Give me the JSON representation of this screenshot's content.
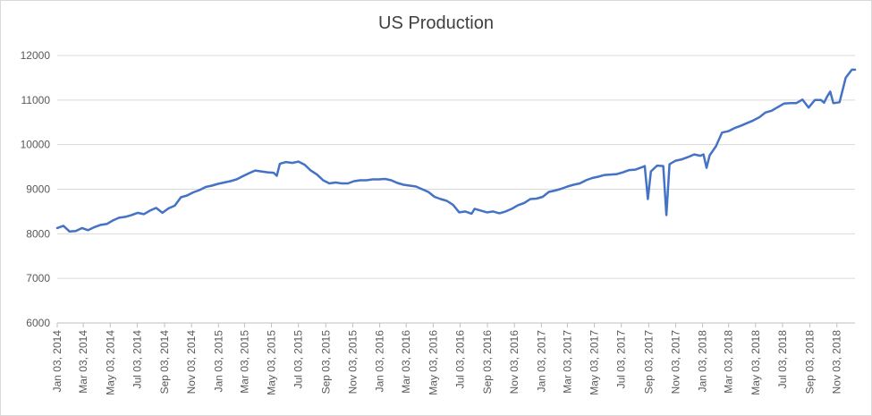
{
  "chart_data": {
    "type": "line",
    "title": "US Production",
    "xlabel": "",
    "ylabel": "",
    "ylim": [
      6000,
      12000
    ],
    "yticks": [
      6000,
      7000,
      8000,
      9000,
      10000,
      11000,
      12000
    ],
    "xticks": [
      "Jan 03, 2014",
      "Mar 03, 2014",
      "May 03, 2014",
      "Jul 03, 2014",
      "Sep 03, 2014",
      "Nov 03, 2014",
      "Jan 03, 2015",
      "Mar 03, 2015",
      "May 03, 2015",
      "Jul 03, 2015",
      "Sep 03, 2015",
      "Nov 03, 2015",
      "Jan 03, 2016",
      "Mar 03, 2016",
      "May 03, 2016",
      "Jul 03, 2016",
      "Sep 03, 2016",
      "Nov 03, 2016",
      "Jan 03, 2017",
      "Mar 03, 2017",
      "May 03, 2017",
      "Jul 03, 2017",
      "Sep 03, 2017",
      "Nov 03, 2017",
      "Jan 03, 2018",
      "Mar 03, 2018",
      "May 03, 2018",
      "Jul 03, 2018",
      "Sep 03, 2018",
      "Nov 03, 2018"
    ],
    "grid": true,
    "legend": "none",
    "series_color": "#4472c4",
    "series": [
      {
        "x": [
          "2014-01-03",
          "2014-01-17",
          "2014-01-31",
          "2014-02-14",
          "2014-02-28",
          "2014-03-14",
          "2014-03-28",
          "2014-04-11",
          "2014-04-25",
          "2014-05-09",
          "2014-05-23",
          "2014-06-06",
          "2014-06-20",
          "2014-07-04",
          "2014-07-18",
          "2014-08-01",
          "2014-08-15",
          "2014-08-29",
          "2014-09-12",
          "2014-09-26",
          "2014-10-10",
          "2014-10-24",
          "2014-11-07",
          "2014-11-21",
          "2014-12-05",
          "2014-12-19",
          "2015-01-02",
          "2015-01-16",
          "2015-01-30",
          "2015-02-13",
          "2015-02-27",
          "2015-03-13",
          "2015-03-27",
          "2015-04-10",
          "2015-04-24",
          "2015-05-08",
          "2015-05-15",
          "2015-05-22",
          "2015-06-05",
          "2015-06-19",
          "2015-07-03",
          "2015-07-17",
          "2015-07-31",
          "2015-08-14",
          "2015-08-28",
          "2015-09-11",
          "2015-09-25",
          "2015-10-09",
          "2015-10-23",
          "2015-11-06",
          "2015-11-20",
          "2015-12-04",
          "2015-12-18",
          "2016-01-01",
          "2016-01-15",
          "2016-01-29",
          "2016-02-12",
          "2016-02-26",
          "2016-03-11",
          "2016-03-25",
          "2016-04-08",
          "2016-04-22",
          "2016-05-06",
          "2016-05-20",
          "2016-06-03",
          "2016-06-17",
          "2016-07-01",
          "2016-07-15",
          "2016-07-29",
          "2016-08-05",
          "2016-08-19",
          "2016-09-02",
          "2016-09-16",
          "2016-09-30",
          "2016-10-14",
          "2016-10-28",
          "2016-11-11",
          "2016-11-25",
          "2016-12-09",
          "2016-12-23",
          "2017-01-06",
          "2017-01-20",
          "2017-02-03",
          "2017-02-17",
          "2017-03-03",
          "2017-03-17",
          "2017-03-31",
          "2017-04-14",
          "2017-04-28",
          "2017-05-12",
          "2017-05-26",
          "2017-06-09",
          "2017-06-23",
          "2017-07-07",
          "2017-07-21",
          "2017-08-04",
          "2017-08-18",
          "2017-08-25",
          "2017-09-01",
          "2017-09-08",
          "2017-09-22",
          "2017-10-06",
          "2017-10-13",
          "2017-10-20",
          "2017-10-27",
          "2017-11-03",
          "2017-11-17",
          "2017-12-01",
          "2017-12-15",
          "2017-12-29",
          "2018-01-05",
          "2018-01-12",
          "2018-01-19",
          "2018-02-02",
          "2018-02-16",
          "2018-03-02",
          "2018-03-16",
          "2018-03-30",
          "2018-04-13",
          "2018-04-27",
          "2018-05-11",
          "2018-05-25",
          "2018-06-08",
          "2018-06-22",
          "2018-07-06",
          "2018-07-20",
          "2018-08-03",
          "2018-08-17",
          "2018-08-31",
          "2018-09-14",
          "2018-09-28",
          "2018-10-05",
          "2018-10-12",
          "2018-10-19",
          "2018-10-26",
          "2018-11-09",
          "2018-11-23",
          "2018-12-07",
          "2018-12-14"
        ],
        "values": [
          8130,
          8180,
          8050,
          8060,
          8130,
          8080,
          8150,
          8200,
          8220,
          8300,
          8360,
          8380,
          8420,
          8470,
          8440,
          8520,
          8580,
          8470,
          8570,
          8630,
          8820,
          8860,
          8930,
          8980,
          9050,
          9080,
          9120,
          9150,
          9180,
          9220,
          9290,
          9360,
          9420,
          9400,
          9380,
          9370,
          9300,
          9570,
          9610,
          9590,
          9620,
          9550,
          9420,
          9330,
          9200,
          9130,
          9150,
          9130,
          9130,
          9180,
          9200,
          9200,
          9220,
          9220,
          9230,
          9200,
          9140,
          9100,
          9080,
          9060,
          9000,
          8940,
          8830,
          8780,
          8740,
          8650,
          8480,
          8500,
          8450,
          8560,
          8520,
          8480,
          8500,
          8460,
          8500,
          8560,
          8640,
          8690,
          8780,
          8790,
          8830,
          8940,
          8970,
          9010,
          9060,
          9100,
          9130,
          9200,
          9250,
          9280,
          9320,
          9330,
          9340,
          9380,
          9430,
          9440,
          9490,
          9520,
          8780,
          9400,
          9530,
          9520,
          8420,
          9560,
          9600,
          9640,
          9670,
          9720,
          9780,
          9750,
          9780,
          9480,
          9760,
          9960,
          10270,
          10300,
          10370,
          10420,
          10480,
          10540,
          10610,
          10720,
          10760,
          10840,
          10920,
          10930,
          10930,
          11010,
          10830,
          11000,
          11000,
          10940,
          11080,
          11190,
          10930,
          10950,
          11500,
          11680,
          11680
        ]
      }
    ]
  }
}
